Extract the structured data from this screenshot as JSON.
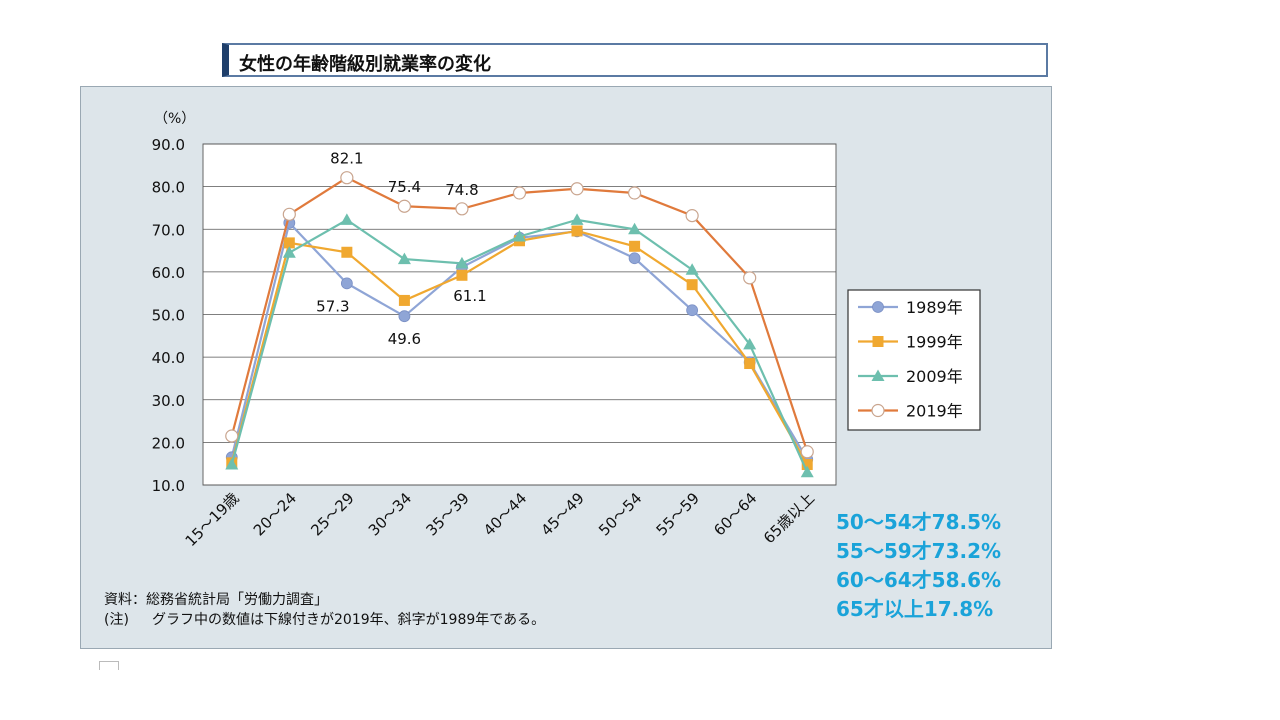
{
  "title": "女性の年齢階級別就業率の変化",
  "notes": {
    "source_label": "資料：",
    "source_text": "総務省統計局「労働力調査」",
    "note_label": "(注)",
    "note_text": "グラフ中の数値は下線付きが2019年、斜字が1989年である。"
  },
  "side_annotations": [
    "50～54才78.5%",
    "55～59才73.2%",
    "60～64才58.6%",
    "65才以上17.8%"
  ],
  "colors": {
    "s1989": "#8fa5d6",
    "s1999": "#f0a830",
    "s2009": "#6dbfae",
    "s2019": "#e07a3c",
    "side_text": "#1aa3d9"
  },
  "chart_data": {
    "type": "line",
    "unit_label": "（%）",
    "categories": [
      "15～19歳",
      "20～24",
      "25～29",
      "30～34",
      "35～39",
      "40～44",
      "45～49",
      "50～54",
      "55～59",
      "60～64",
      "65歳以上"
    ],
    "yticks": [
      "90.0",
      "80.0",
      "70.0",
      "60.0",
      "50.0",
      "40.0",
      "30.0",
      "20.0",
      "10.0"
    ],
    "ylim": [
      10,
      90
    ],
    "grid": true,
    "legend_position": "right",
    "series": [
      {
        "name": "1989年",
        "marker": "circle-filled",
        "color_key": "s1989",
        "values": [
          16.5,
          71.5,
          57.3,
          49.6,
          61.1,
          68.0,
          69.5,
          63.2,
          51.0,
          38.8,
          16.0
        ]
      },
      {
        "name": "1999年",
        "marker": "square",
        "color_key": "s1999",
        "values": [
          15.2,
          66.8,
          64.6,
          53.3,
          59.2,
          67.3,
          69.6,
          66.0,
          57.0,
          38.5,
          14.8
        ]
      },
      {
        "name": "2009年",
        "marker": "triangle",
        "color_key": "s2009",
        "values": [
          14.8,
          64.5,
          72.2,
          63.0,
          62.0,
          68.3,
          72.2,
          70.0,
          60.5,
          43.0,
          13.0
        ]
      },
      {
        "name": "2019年",
        "marker": "circle-open",
        "color_key": "s2019",
        "values": [
          21.5,
          73.5,
          82.1,
          75.4,
          74.8,
          78.5,
          79.5,
          78.5,
          73.2,
          58.6,
          17.8
        ]
      }
    ],
    "data_labels": [
      {
        "series": "2019年",
        "category": "25～29",
        "text": "82.1"
      },
      {
        "series": "2019年",
        "category": "30～34",
        "text": "75.4"
      },
      {
        "series": "2019年",
        "category": "35～39",
        "text": "74.8"
      },
      {
        "series": "1989年",
        "category": "25～29",
        "text": "57.3"
      },
      {
        "series": "1989年",
        "category": "30～34",
        "text": "49.6"
      },
      {
        "series": "1989年",
        "category": "35～39",
        "text": "61.1"
      }
    ]
  }
}
